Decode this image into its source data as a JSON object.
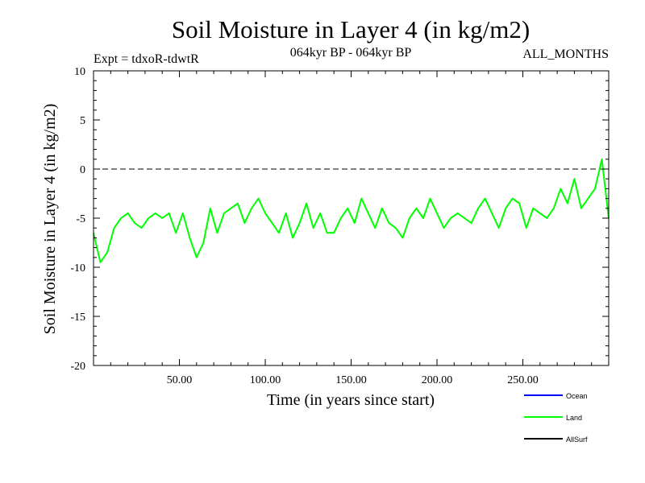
{
  "chart_data": {
    "type": "line",
    "title": "Soil Moisture in Layer 4 (in kg/m2)",
    "subtitle_left": "Expt = tdxoR-tdwtR",
    "subtitle_center": "064kyr BP - 064kyr BP",
    "subtitle_right": "ALL_MONTHS",
    "xlabel": "Time (in years since start)",
    "ylabel": "Soil Moisture in Layer 4 (in kg/m2)",
    "xlim": [
      0,
      300
    ],
    "ylim": [
      -20,
      10
    ],
    "x_ticks": [
      {
        "value": 50,
        "label": "50.00"
      },
      {
        "value": 100,
        "label": "100.00"
      },
      {
        "value": 150,
        "label": "150.00"
      },
      {
        "value": 200,
        "label": "200.00"
      },
      {
        "value": 250,
        "label": "250.00"
      }
    ],
    "y_ticks": [
      {
        "value": 10,
        "label": "10"
      },
      {
        "value": 5,
        "label": "5"
      },
      {
        "value": 0,
        "label": "0"
      },
      {
        "value": -5,
        "label": "-5"
      },
      {
        "value": -10,
        "label": "-10"
      },
      {
        "value": -15,
        "label": "-15"
      },
      {
        "value": -20,
        "label": "-20"
      }
    ],
    "reference_line": {
      "value": 0,
      "style": "dashed"
    },
    "legend": [
      {
        "name": "Ocean",
        "color": "#0000ff"
      },
      {
        "name": "Land",
        "color": "#00ff00"
      },
      {
        "name": "AllSurf",
        "color": "#000000"
      }
    ],
    "legend_placement": "bottom-right",
    "series": [
      {
        "name": "Land",
        "color": "#00ff00",
        "x": [
          0,
          4,
          8,
          12,
          16,
          20,
          24,
          28,
          32,
          36,
          40,
          44,
          48,
          52,
          56,
          60,
          64,
          68,
          72,
          76,
          80,
          84,
          88,
          92,
          96,
          100,
          104,
          108,
          112,
          116,
          120,
          124,
          128,
          132,
          136,
          140,
          144,
          148,
          152,
          156,
          160,
          164,
          168,
          172,
          176,
          180,
          184,
          188,
          192,
          196,
          200,
          204,
          208,
          212,
          216,
          220,
          224,
          228,
          232,
          236,
          240,
          244,
          248,
          252,
          256,
          260,
          264,
          268,
          272,
          276,
          280,
          284,
          288,
          292,
          296,
          300
        ],
        "values": [
          -6.5,
          -9.5,
          -8.5,
          -6,
          -5,
          -4.5,
          -5.5,
          -6,
          -5,
          -4.5,
          -5,
          -4.5,
          -6.5,
          -4.5,
          -7,
          -9,
          -7.5,
          -4,
          -6.5,
          -4.5,
          -4,
          -3.5,
          -5.5,
          -4,
          -3,
          -4.5,
          -5.5,
          -6.5,
          -4.5,
          -7,
          -5.5,
          -3.5,
          -6,
          -4.5,
          -6.5,
          -6.5,
          -5,
          -4,
          -5.5,
          -3,
          -4.5,
          -6,
          -4,
          -5.5,
          -6,
          -7,
          -5,
          -4,
          -5,
          -3,
          -4.5,
          -6,
          -5,
          -4.5,
          -5,
          -5.5,
          -4,
          -3,
          -4.5,
          -6,
          -4,
          -3,
          -3.5,
          -6,
          -4,
          -4.5,
          -5,
          -4,
          -2,
          -3.5,
          -1,
          -4,
          -3,
          -2,
          1,
          -5
        ]
      }
    ]
  }
}
